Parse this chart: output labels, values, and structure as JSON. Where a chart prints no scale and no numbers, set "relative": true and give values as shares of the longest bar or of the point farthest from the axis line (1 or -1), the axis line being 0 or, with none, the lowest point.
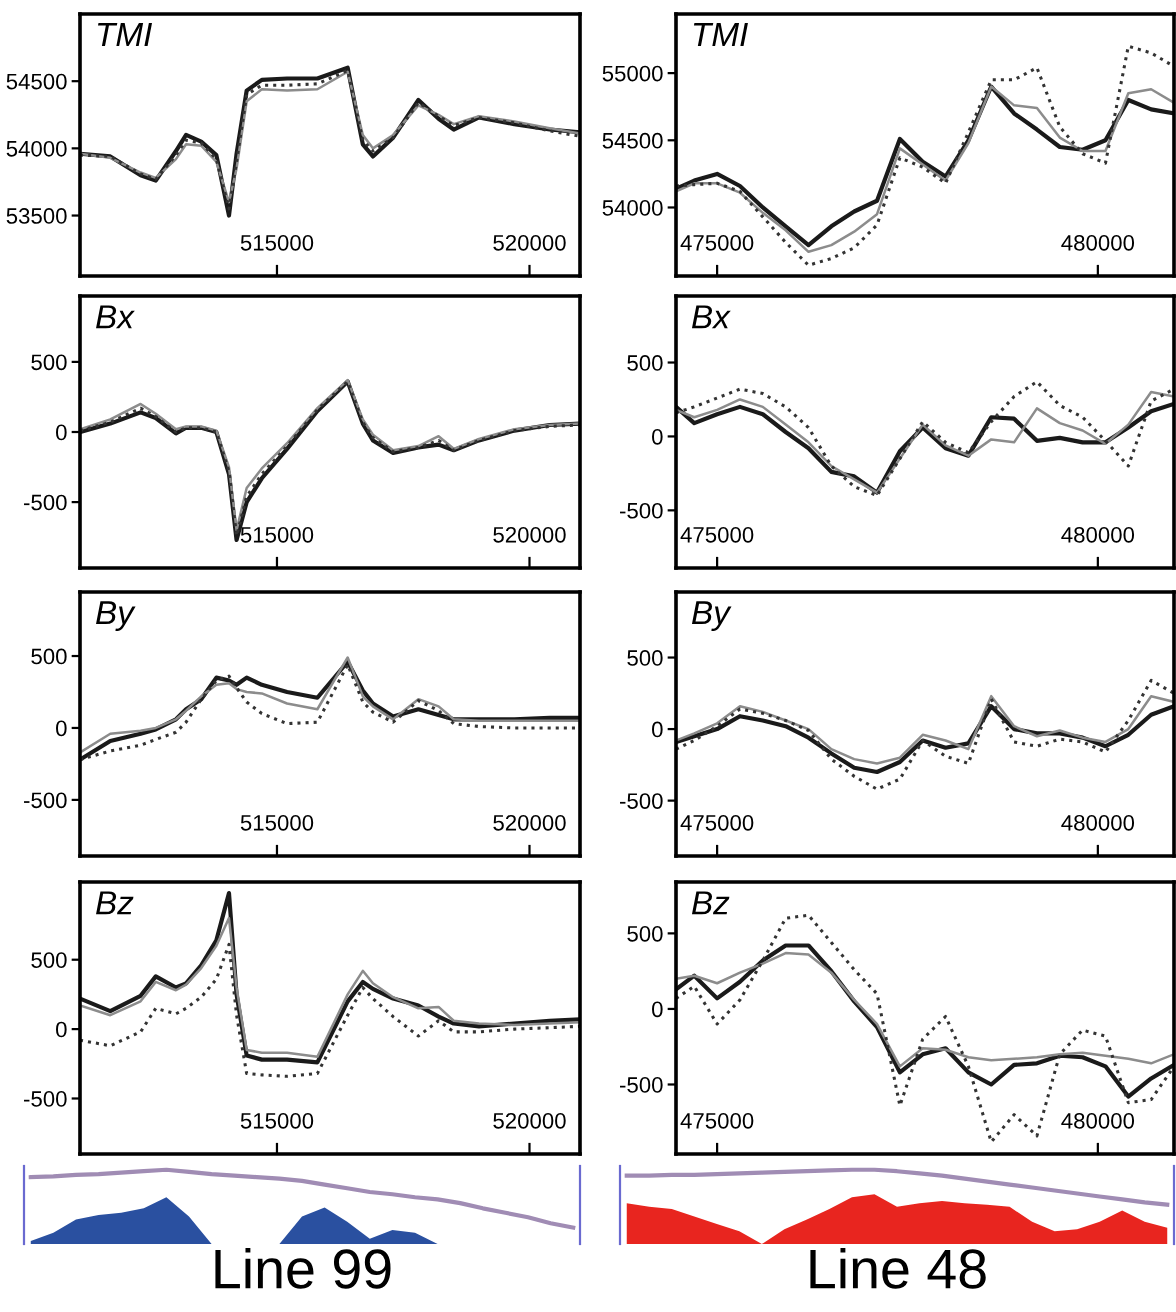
{
  "chart_data": [
    {
      "type": "line",
      "title": "TMI",
      "x": [
        511100,
        511700,
        512300,
        512600,
        513000,
        513200,
        513500,
        513800,
        514050,
        514200,
        514400,
        514700,
        515200,
        515800,
        516400,
        516700,
        516900,
        517300,
        517800,
        518200,
        518500,
        519000,
        519700,
        520400,
        521000
      ],
      "series": [
        {
          "color": "#1a1a1a",
          "line_style": "solid",
          "values": [
            53960,
            53940,
            53800,
            53760,
            53980,
            54100,
            54050,
            53950,
            53500,
            53960,
            54430,
            54510,
            54520,
            54520,
            54600,
            54030,
            53940,
            54080,
            54360,
            54220,
            54140,
            54230,
            54180,
            54140,
            54120
          ]
        },
        {
          "color": "#8c8c8c",
          "line_style": "solid",
          "values": [
            53960,
            53930,
            53820,
            53780,
            53920,
            54030,
            54020,
            53900,
            53600,
            53850,
            54350,
            54440,
            54430,
            54440,
            54570,
            54100,
            54000,
            54100,
            54320,
            54250,
            54180,
            54240,
            54200,
            54150,
            54110
          ]
        },
        {
          "color": "#333333",
          "line_style": "dotted",
          "values": [
            53950,
            53940,
            53810,
            53770,
            53950,
            54060,
            54040,
            53920,
            53550,
            53900,
            54400,
            54470,
            54470,
            54480,
            54580,
            54060,
            53980,
            54080,
            54340,
            54240,
            54170,
            54230,
            54190,
            54130,
            54090
          ]
        }
      ],
      "xlim": [
        511100,
        521000
      ],
      "ylim": [
        53050,
        55000
      ],
      "xticks": [
        515000,
        520000
      ],
      "yticks": [
        53500,
        54000,
        54500
      ]
    },
    {
      "type": "line",
      "title": "TMI",
      "x": [
        474460,
        474700,
        475000,
        475300,
        475600,
        475900,
        476200,
        476500,
        476800,
        477100,
        477400,
        477700,
        478000,
        478300,
        478600,
        478900,
        479200,
        479500,
        479800,
        480100,
        480400,
        480700,
        481000
      ],
      "series": [
        {
          "color": "#1a1a1a",
          "line_style": "solid",
          "values": [
            54140,
            54200,
            54250,
            54160,
            54000,
            53860,
            53720,
            53860,
            53970,
            54050,
            54510,
            54340,
            54230,
            54500,
            54900,
            54700,
            54580,
            54450,
            54430,
            54500,
            54800,
            54730,
            54700
          ]
        },
        {
          "color": "#8c8c8c",
          "line_style": "solid",
          "values": [
            54120,
            54180,
            54180,
            54110,
            53960,
            53830,
            53670,
            53720,
            53820,
            53950,
            54440,
            54320,
            54200,
            54480,
            54900,
            54760,
            54740,
            54520,
            54420,
            54420,
            54850,
            54880,
            54780
          ]
        },
        {
          "color": "#333333",
          "line_style": "dotted",
          "values": [
            54160,
            54170,
            54180,
            54120,
            53930,
            53740,
            53570,
            53620,
            53700,
            53870,
            54370,
            54300,
            54180,
            54560,
            54950,
            54950,
            55040,
            54600,
            54400,
            54330,
            55200,
            55150,
            55050
          ]
        }
      ],
      "xlim": [
        474460,
        481000
      ],
      "ylim": [
        53490,
        55440
      ],
      "xticks": [
        475000,
        480000
      ],
      "yticks": [
        54000,
        54500,
        55000
      ]
    },
    {
      "type": "line",
      "title": "Bx",
      "x": [
        511100,
        511700,
        512300,
        512600,
        513000,
        513200,
        513500,
        513800,
        514050,
        514200,
        514400,
        514700,
        515200,
        515800,
        516400,
        516700,
        516900,
        517300,
        517800,
        518200,
        518500,
        519000,
        519700,
        520400,
        521000
      ],
      "series": [
        {
          "color": "#1a1a1a",
          "line_style": "solid",
          "values": [
            0,
            60,
            140,
            100,
            -10,
            30,
            30,
            0,
            -300,
            -770,
            -500,
            -330,
            -120,
            150,
            360,
            60,
            -60,
            -150,
            -110,
            -90,
            -130,
            -60,
            10,
            50,
            60
          ]
        },
        {
          "color": "#8c8c8c",
          "line_style": "solid",
          "values": [
            20,
            90,
            200,
            130,
            20,
            40,
            40,
            10,
            -250,
            -700,
            -400,
            -260,
            -80,
            170,
            370,
            90,
            -20,
            -130,
            -100,
            -30,
            -120,
            -50,
            20,
            50,
            60
          ]
        },
        {
          "color": "#333333",
          "line_style": "dotted",
          "values": [
            10,
            70,
            170,
            110,
            0,
            30,
            30,
            0,
            -280,
            -740,
            -460,
            -300,
            -100,
            160,
            360,
            70,
            -40,
            -140,
            -110,
            -60,
            -130,
            -60,
            10,
            40,
            50
          ]
        }
      ],
      "xlim": [
        511100,
        521000
      ],
      "ylim": [
        -970,
        970
      ],
      "xticks": [
        515000,
        520000
      ],
      "yticks": [
        -500,
        0,
        500
      ]
    },
    {
      "type": "line",
      "title": "Bx",
      "x": [
        474460,
        474700,
        475000,
        475300,
        475600,
        475900,
        476200,
        476500,
        476800,
        477100,
        477400,
        477700,
        478000,
        478300,
        478600,
        478900,
        479200,
        479500,
        479800,
        480100,
        480400,
        480700,
        481000
      ],
      "series": [
        {
          "color": "#1a1a1a",
          "line_style": "solid",
          "values": [
            200,
            90,
            150,
            200,
            150,
            30,
            -80,
            -240,
            -270,
            -380,
            -100,
            60,
            -80,
            -130,
            130,
            120,
            -30,
            -10,
            -40,
            -40,
            60,
            170,
            220
          ]
        },
        {
          "color": "#8c8c8c",
          "line_style": "solid",
          "values": [
            180,
            130,
            180,
            250,
            200,
            80,
            -40,
            -200,
            -290,
            -380,
            -150,
            80,
            -60,
            -130,
            -20,
            -40,
            190,
            90,
            40,
            -50,
            80,
            300,
            270
          ]
        },
        {
          "color": "#333333",
          "line_style": "dotted",
          "values": [
            160,
            200,
            260,
            320,
            290,
            200,
            60,
            -200,
            -340,
            -400,
            -150,
            100,
            -40,
            -110,
            100,
            270,
            370,
            210,
            130,
            -30,
            -200,
            240,
            320
          ]
        }
      ],
      "xlim": [
        474460,
        481000
      ],
      "ylim": [
        -890,
        950
      ],
      "xticks": [
        475000,
        480000
      ],
      "yticks": [
        -500,
        0,
        500
      ]
    },
    {
      "type": "line",
      "title": "By",
      "x": [
        511100,
        511700,
        512300,
        512600,
        513000,
        513200,
        513500,
        513800,
        514050,
        514200,
        514400,
        514700,
        515200,
        515800,
        516400,
        516700,
        516900,
        517300,
        517800,
        518200,
        518500,
        519000,
        519700,
        520400,
        521000
      ],
      "series": [
        {
          "color": "#1a1a1a",
          "line_style": "solid",
          "values": [
            -220,
            -90,
            -40,
            -10,
            60,
            130,
            200,
            350,
            330,
            300,
            350,
            300,
            250,
            210,
            460,
            260,
            170,
            80,
            130,
            90,
            60,
            60,
            60,
            70,
            70
          ]
        },
        {
          "color": "#8c8c8c",
          "line_style": "solid",
          "values": [
            -170,
            -40,
            -20,
            0,
            60,
            120,
            220,
            300,
            310,
            270,
            250,
            240,
            170,
            130,
            490,
            220,
            150,
            60,
            200,
            150,
            60,
            50,
            50,
            50,
            50
          ]
        },
        {
          "color": "#333333",
          "line_style": "dotted",
          "values": [
            -220,
            -160,
            -120,
            -80,
            -30,
            40,
            200,
            330,
            360,
            280,
            180,
            100,
            30,
            40,
            440,
            180,
            110,
            40,
            190,
            120,
            30,
            10,
            0,
            0,
            0
          ]
        }
      ],
      "xlim": [
        511100,
        521000
      ],
      "ylim": [
        -890,
        945
      ],
      "xticks": [
        515000,
        520000
      ],
      "yticks": [
        -500,
        0,
        500
      ]
    },
    {
      "type": "line",
      "title": "By",
      "x": [
        474460,
        474700,
        475000,
        475300,
        475600,
        475900,
        476200,
        476500,
        476800,
        477100,
        477400,
        477700,
        478000,
        478300,
        478600,
        478900,
        479200,
        479500,
        479800,
        480100,
        480400,
        480700,
        481000
      ],
      "series": [
        {
          "color": "#1a1a1a",
          "line_style": "solid",
          "values": [
            -90,
            -50,
            0,
            90,
            60,
            20,
            -60,
            -170,
            -270,
            -300,
            -230,
            -80,
            -130,
            -100,
            160,
            0,
            -30,
            -30,
            -60,
            -120,
            -40,
            100,
            160
          ]
        },
        {
          "color": "#8c8c8c",
          "line_style": "solid",
          "values": [
            -80,
            -30,
            40,
            160,
            120,
            60,
            0,
            -140,
            -210,
            -240,
            -200,
            -40,
            -80,
            -140,
            230,
            20,
            -50,
            -10,
            -60,
            -90,
            0,
            230,
            190
          ]
        },
        {
          "color": "#333333",
          "line_style": "dotted",
          "values": [
            -140,
            -80,
            20,
            140,
            110,
            60,
            -10,
            -210,
            -330,
            -420,
            -350,
            -80,
            -190,
            -240,
            210,
            -90,
            -120,
            -70,
            -90,
            -160,
            60,
            340,
            250
          ]
        }
      ],
      "xlim": [
        474460,
        481000
      ],
      "ylim": [
        -887,
        958
      ],
      "xticks": [
        475000,
        480000
      ],
      "yticks": [
        -500,
        0,
        500
      ]
    },
    {
      "type": "line",
      "title": "Bz",
      "x": [
        511100,
        511700,
        512300,
        512600,
        513000,
        513200,
        513500,
        513800,
        514050,
        514200,
        514400,
        514700,
        515200,
        515800,
        516400,
        516700,
        516900,
        517300,
        517800,
        518200,
        518500,
        519000,
        519700,
        520400,
        521000
      ],
      "series": [
        {
          "color": "#1a1a1a",
          "line_style": "solid",
          "values": [
            220,
            130,
            240,
            380,
            300,
            330,
            460,
            640,
            980,
            250,
            -190,
            -220,
            -220,
            -240,
            200,
            340,
            290,
            220,
            170,
            90,
            40,
            20,
            40,
            60,
            70
          ]
        },
        {
          "color": "#8c8c8c",
          "line_style": "solid",
          "values": [
            170,
            100,
            200,
            340,
            280,
            320,
            440,
            600,
            800,
            300,
            -150,
            -170,
            -170,
            -200,
            250,
            420,
            330,
            230,
            150,
            160,
            60,
            40,
            30,
            40,
            50
          ]
        },
        {
          "color": "#333333",
          "line_style": "dotted",
          "values": [
            -80,
            -120,
            -20,
            150,
            110,
            150,
            230,
            360,
            610,
            100,
            -320,
            -330,
            -340,
            -320,
            100,
            300,
            220,
            90,
            -50,
            60,
            -20,
            -20,
            0,
            10,
            20
          ]
        }
      ],
      "xlim": [
        511100,
        521000
      ],
      "ylim": [
        -900,
        1060
      ],
      "xticks": [
        515000,
        520000
      ],
      "yticks": [
        -500,
        0,
        500
      ]
    },
    {
      "type": "line",
      "title": "Bz",
      "x": [
        474460,
        474700,
        475000,
        475300,
        475600,
        475900,
        476200,
        476500,
        476800,
        477100,
        477400,
        477700,
        478000,
        478300,
        478600,
        478900,
        479200,
        479500,
        479800,
        480100,
        480400,
        480700,
        481000
      ],
      "series": [
        {
          "color": "#1a1a1a",
          "line_style": "solid",
          "values": [
            130,
            220,
            70,
            180,
            320,
            420,
            420,
            250,
            50,
            -120,
            -420,
            -300,
            -260,
            -420,
            -500,
            -370,
            -360,
            -310,
            -320,
            -380,
            -580,
            -460,
            -370
          ]
        },
        {
          "color": "#8c8c8c",
          "line_style": "solid",
          "values": [
            200,
            220,
            170,
            240,
            300,
            370,
            360,
            240,
            60,
            -100,
            -380,
            -260,
            -270,
            -320,
            -340,
            -330,
            -320,
            -300,
            -290,
            -310,
            -330,
            -360,
            -300
          ]
        },
        {
          "color": "#333333",
          "line_style": "dotted",
          "values": [
            70,
            150,
            -100,
            60,
            320,
            600,
            620,
            440,
            260,
            100,
            -640,
            -200,
            -50,
            -380,
            -880,
            -700,
            -840,
            -300,
            -140,
            -180,
            -620,
            -600,
            -380
          ]
        }
      ],
      "xlim": [
        474460,
        481000
      ],
      "ylim": [
        -960,
        840
      ],
      "xticks": [
        475000,
        480000
      ],
      "yticks": [
        -500,
        0,
        500
      ]
    },
    {
      "type": "area",
      "title": "Line 99",
      "relative": true,
      "categories": [
        null,
        null,
        null,
        null,
        null,
        null,
        null,
        null,
        null,
        null,
        null,
        null,
        null,
        null,
        null,
        null,
        null,
        null,
        null,
        null,
        null,
        null,
        null,
        null,
        null
      ],
      "series": [
        {
          "type": "area",
          "color": "#2a50a0",
          "values": [
            0.04,
            0.15,
            0.33,
            0.39,
            0.42,
            0.48,
            0.63,
            0.37,
            0,
            0,
            0,
            0,
            0.37,
            0.49,
            0.3,
            0.07,
            0.19,
            0.15,
            0,
            0,
            0,
            0,
            0,
            0,
            0
          ]
        },
        {
          "type": "line",
          "color": "#a08cb4",
          "values": [
            0.9,
            0.91,
            0.93,
            0.94,
            0.96,
            0.98,
            1.0,
            0.97,
            0.94,
            0.92,
            0.9,
            0.88,
            0.85,
            0.8,
            0.75,
            0.7,
            0.67,
            0.63,
            0.6,
            0.55,
            0.48,
            0.42,
            0.36,
            0.28,
            0.22
          ]
        }
      ]
    },
    {
      "type": "area",
      "title": "Line 48",
      "relative": true,
      "categories": [
        null,
        null,
        null,
        null,
        null,
        null,
        null,
        null,
        null,
        null,
        null,
        null,
        null,
        null,
        null,
        null,
        null,
        null,
        null,
        null,
        null,
        null,
        null,
        null,
        null
      ],
      "series": [
        {
          "type": "area",
          "color": "#e8251f",
          "values": [
            0.55,
            0.5,
            0.47,
            0.37,
            0.27,
            0.17,
            0,
            0.2,
            0.33,
            0.47,
            0.63,
            0.67,
            0.5,
            0.55,
            0.58,
            0.55,
            0.53,
            0.5,
            0.3,
            0.17,
            0.2,
            0.3,
            0.45,
            0.3,
            0.22
          ]
        },
        {
          "type": "line",
          "color": "#a08cb4",
          "values": [
            0.92,
            0.92,
            0.93,
            0.93,
            0.94,
            0.95,
            0.96,
            0.97,
            0.98,
            0.99,
            1.0,
            1.0,
            0.98,
            0.95,
            0.92,
            0.88,
            0.84,
            0.8,
            0.76,
            0.72,
            0.68,
            0.64,
            0.6,
            0.56,
            0.53
          ]
        }
      ]
    }
  ]
}
